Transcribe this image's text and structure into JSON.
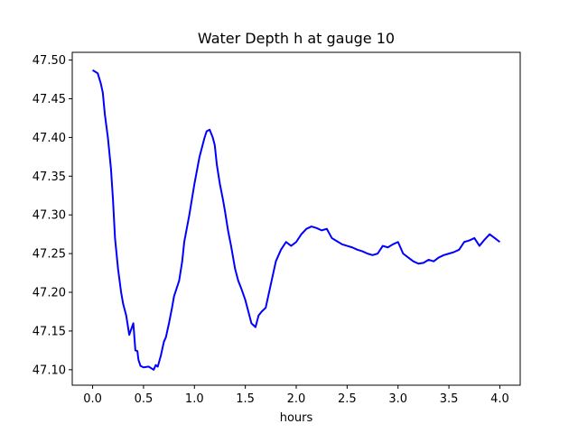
{
  "chart_data": {
    "type": "line",
    "title": "Water Depth h at gauge 10",
    "xlabel": "hours",
    "ylabel": "",
    "xlim": [
      -0.2,
      4.2
    ],
    "ylim": [
      47.08,
      47.51
    ],
    "grid": false,
    "line_color": "#0000ff",
    "x_ticks": [
      {
        "value": 0.0,
        "label": "0.0"
      },
      {
        "value": 0.5,
        "label": "0.5"
      },
      {
        "value": 1.0,
        "label": "1.0"
      },
      {
        "value": 1.5,
        "label": "1.5"
      },
      {
        "value": 2.0,
        "label": "2.0"
      },
      {
        "value": 2.5,
        "label": "2.5"
      },
      {
        "value": 3.0,
        "label": "3.0"
      },
      {
        "value": 3.5,
        "label": "3.5"
      },
      {
        "value": 4.0,
        "label": "4.0"
      }
    ],
    "y_ticks": [
      {
        "value": 47.1,
        "label": "47.10"
      },
      {
        "value": 47.15,
        "label": "47.15"
      },
      {
        "value": 47.2,
        "label": "47.20"
      },
      {
        "value": 47.25,
        "label": "47.25"
      },
      {
        "value": 47.3,
        "label": "47.30"
      },
      {
        "value": 47.35,
        "label": "47.35"
      },
      {
        "value": 47.4,
        "label": "47.40"
      },
      {
        "value": 47.45,
        "label": "47.45"
      },
      {
        "value": 47.5,
        "label": "47.50"
      }
    ],
    "series": [
      {
        "x": [
          0.0,
          0.05,
          0.08,
          0.1,
          0.12,
          0.15,
          0.18,
          0.2,
          0.22,
          0.25,
          0.28,
          0.3,
          0.33,
          0.36,
          0.4,
          0.42,
          0.44,
          0.45,
          0.47,
          0.5,
          0.55,
          0.6,
          0.62,
          0.64,
          0.67,
          0.7,
          0.72,
          0.75,
          0.78,
          0.8,
          0.85,
          0.88,
          0.9,
          0.95,
          1.0,
          1.05,
          1.08,
          1.1,
          1.12,
          1.15,
          1.18,
          1.2,
          1.22,
          1.25,
          1.28,
          1.3,
          1.33,
          1.36,
          1.4,
          1.43,
          1.46,
          1.5,
          1.53,
          1.56,
          1.6,
          1.63,
          1.66,
          1.7,
          1.75,
          1.8,
          1.85,
          1.9,
          1.95,
          2.0,
          2.05,
          2.1,
          2.15,
          2.2,
          2.25,
          2.3,
          2.35,
          2.4,
          2.45,
          2.5,
          2.55,
          2.6,
          2.65,
          2.7,
          2.75,
          2.8,
          2.85,
          2.9,
          2.95,
          3.0,
          3.05,
          3.1,
          3.15,
          3.2,
          3.25,
          3.3,
          3.35,
          3.4,
          3.45,
          3.5,
          3.55,
          3.6,
          3.65,
          3.7,
          3.75,
          3.8,
          3.85,
          3.9,
          3.95,
          4.0
        ],
        "y": [
          47.487,
          47.483,
          47.47,
          47.458,
          47.43,
          47.4,
          47.36,
          47.32,
          47.27,
          47.23,
          47.2,
          47.185,
          47.17,
          47.145,
          47.16,
          47.125,
          47.124,
          47.113,
          47.105,
          47.103,
          47.104,
          47.1,
          47.106,
          47.104,
          47.118,
          47.136,
          47.142,
          47.16,
          47.18,
          47.195,
          47.215,
          47.24,
          47.265,
          47.3,
          47.34,
          47.375,
          47.39,
          47.4,
          47.408,
          47.41,
          47.4,
          47.39,
          47.365,
          47.34,
          47.32,
          47.305,
          47.28,
          47.26,
          47.23,
          47.215,
          47.205,
          47.19,
          47.175,
          47.16,
          47.155,
          47.17,
          47.175,
          47.18,
          47.21,
          47.24,
          47.255,
          47.265,
          47.26,
          47.265,
          47.275,
          47.282,
          47.285,
          47.283,
          47.28,
          47.282,
          47.27,
          47.266,
          47.262,
          47.26,
          47.258,
          47.255,
          47.253,
          47.25,
          47.248,
          47.25,
          47.26,
          47.258,
          47.262,
          47.265,
          47.25,
          47.245,
          47.24,
          47.237,
          47.238,
          47.242,
          47.24,
          47.245,
          47.248,
          47.25,
          47.252,
          47.255,
          47.265,
          47.267,
          47.27,
          47.26,
          47.268,
          47.275,
          47.27,
          47.265
        ]
      }
    ]
  }
}
